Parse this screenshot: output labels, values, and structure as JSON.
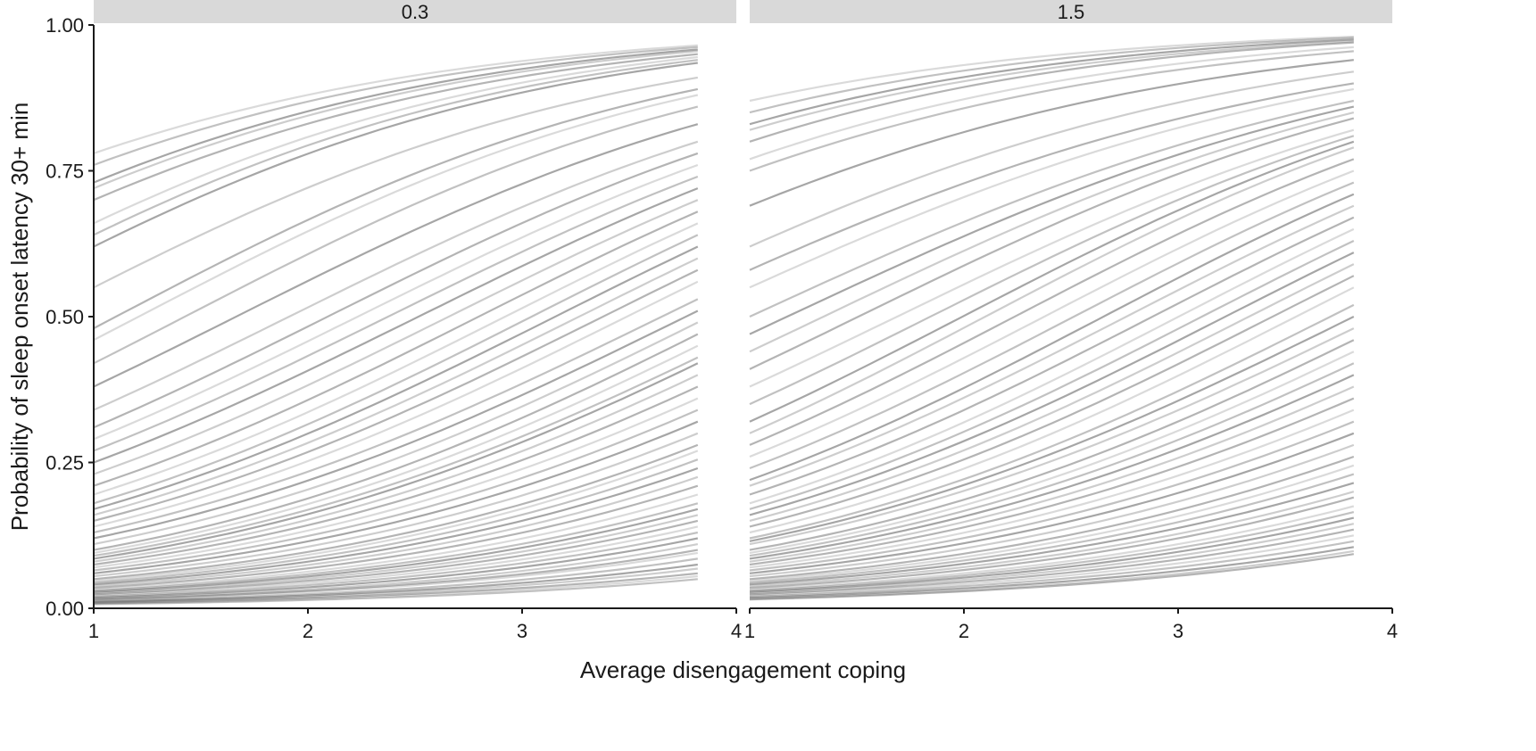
{
  "chart_data": {
    "type": "line",
    "xlabel": "Average disengagement coping",
    "ylabel": "Probability of sleep onset latency 30+ min",
    "xlim": [
      1,
      4
    ],
    "ylim": [
      0,
      1
    ],
    "x_ticks": [
      1,
      2,
      3,
      4
    ],
    "y_ticks": [
      0.0,
      0.25,
      0.5,
      0.75,
      1.0
    ],
    "y_tick_labels": [
      "0.00",
      "0.25",
      "0.50",
      "0.75",
      "1.00"
    ],
    "x_tick_labels": [
      "1",
      "2",
      "3",
      "4"
    ],
    "line_color": "#6b6b6b",
    "strip_color": "#d9d9d9",
    "series_x_range": [
      1,
      3.82
    ],
    "panels": [
      {
        "strip_label": "0.3",
        "series": [
          {
            "start": 0.78,
            "end": 0.965
          },
          {
            "start": 0.76,
            "end": 0.962
          },
          {
            "start": 0.73,
            "end": 0.958
          },
          {
            "start": 0.72,
            "end": 0.955
          },
          {
            "start": 0.7,
            "end": 0.95
          },
          {
            "start": 0.66,
            "end": 0.945
          },
          {
            "start": 0.64,
            "end": 0.94
          },
          {
            "start": 0.62,
            "end": 0.935
          },
          {
            "start": 0.55,
            "end": 0.91
          },
          {
            "start": 0.48,
            "end": 0.89
          },
          {
            "start": 0.46,
            "end": 0.88
          },
          {
            "start": 0.42,
            "end": 0.86
          },
          {
            "start": 0.38,
            "end": 0.83
          },
          {
            "start": 0.34,
            "end": 0.8
          },
          {
            "start": 0.31,
            "end": 0.78
          },
          {
            "start": 0.29,
            "end": 0.76
          },
          {
            "start": 0.27,
            "end": 0.74
          },
          {
            "start": 0.25,
            "end": 0.72
          },
          {
            "start": 0.23,
            "end": 0.7
          },
          {
            "start": 0.21,
            "end": 0.68
          },
          {
            "start": 0.195,
            "end": 0.66
          },
          {
            "start": 0.18,
            "end": 0.64
          },
          {
            "start": 0.17,
            "end": 0.62
          },
          {
            "start": 0.16,
            "end": 0.6
          },
          {
            "start": 0.15,
            "end": 0.58
          },
          {
            "start": 0.14,
            "end": 0.56
          },
          {
            "start": 0.13,
            "end": 0.53
          },
          {
            "start": 0.12,
            "end": 0.51
          },
          {
            "start": 0.11,
            "end": 0.49
          },
          {
            "start": 0.1,
            "end": 0.47
          },
          {
            "start": 0.095,
            "end": 0.45
          },
          {
            "start": 0.09,
            "end": 0.43
          },
          {
            "start": 0.085,
            "end": 0.42
          },
          {
            "start": 0.08,
            "end": 0.4
          },
          {
            "start": 0.075,
            "end": 0.38
          },
          {
            "start": 0.07,
            "end": 0.36
          },
          {
            "start": 0.065,
            "end": 0.34
          },
          {
            "start": 0.06,
            "end": 0.32
          },
          {
            "start": 0.055,
            "end": 0.3
          },
          {
            "start": 0.05,
            "end": 0.28
          },
          {
            "start": 0.047,
            "end": 0.27
          },
          {
            "start": 0.044,
            "end": 0.255
          },
          {
            "start": 0.041,
            "end": 0.24
          },
          {
            "start": 0.038,
            "end": 0.225
          },
          {
            "start": 0.035,
            "end": 0.21
          },
          {
            "start": 0.032,
            "end": 0.195
          },
          {
            "start": 0.03,
            "end": 0.18
          },
          {
            "start": 0.028,
            "end": 0.17
          },
          {
            "start": 0.026,
            "end": 0.16
          },
          {
            "start": 0.024,
            "end": 0.15
          },
          {
            "start": 0.022,
            "end": 0.14
          },
          {
            "start": 0.02,
            "end": 0.13
          },
          {
            "start": 0.018,
            "end": 0.12
          },
          {
            "start": 0.016,
            "end": 0.11
          },
          {
            "start": 0.015,
            "end": 0.1
          },
          {
            "start": 0.014,
            "end": 0.095
          },
          {
            "start": 0.012,
            "end": 0.085
          },
          {
            "start": 0.011,
            "end": 0.075
          },
          {
            "start": 0.01,
            "end": 0.068
          },
          {
            "start": 0.009,
            "end": 0.06
          },
          {
            "start": 0.008,
            "end": 0.055
          },
          {
            "start": 0.007,
            "end": 0.05
          }
        ]
      },
      {
        "strip_label": "1.5",
        "series": [
          {
            "start": 0.87,
            "end": 0.98
          },
          {
            "start": 0.85,
            "end": 0.978
          },
          {
            "start": 0.83,
            "end": 0.975
          },
          {
            "start": 0.82,
            "end": 0.972
          },
          {
            "start": 0.8,
            "end": 0.97
          },
          {
            "start": 0.77,
            "end": 0.962
          },
          {
            "start": 0.75,
            "end": 0.955
          },
          {
            "start": 0.69,
            "end": 0.94
          },
          {
            "start": 0.62,
            "end": 0.92
          },
          {
            "start": 0.58,
            "end": 0.9
          },
          {
            "start": 0.55,
            "end": 0.89
          },
          {
            "start": 0.5,
            "end": 0.87
          },
          {
            "start": 0.47,
            "end": 0.86
          },
          {
            "start": 0.44,
            "end": 0.85
          },
          {
            "start": 0.41,
            "end": 0.84
          },
          {
            "start": 0.38,
            "end": 0.82
          },
          {
            "start": 0.35,
            "end": 0.81
          },
          {
            "start": 0.32,
            "end": 0.8
          },
          {
            "start": 0.3,
            "end": 0.79
          },
          {
            "start": 0.28,
            "end": 0.77
          },
          {
            "start": 0.26,
            "end": 0.75
          },
          {
            "start": 0.24,
            "end": 0.73
          },
          {
            "start": 0.22,
            "end": 0.71
          },
          {
            "start": 0.21,
            "end": 0.69
          },
          {
            "start": 0.195,
            "end": 0.67
          },
          {
            "start": 0.18,
            "end": 0.65
          },
          {
            "start": 0.17,
            "end": 0.63
          },
          {
            "start": 0.16,
            "end": 0.61
          },
          {
            "start": 0.15,
            "end": 0.59
          },
          {
            "start": 0.14,
            "end": 0.57
          },
          {
            "start": 0.13,
            "end": 0.55
          },
          {
            "start": 0.12,
            "end": 0.52
          },
          {
            "start": 0.115,
            "end": 0.5
          },
          {
            "start": 0.11,
            "end": 0.48
          },
          {
            "start": 0.1,
            "end": 0.46
          },
          {
            "start": 0.095,
            "end": 0.44
          },
          {
            "start": 0.09,
            "end": 0.42
          },
          {
            "start": 0.085,
            "end": 0.4
          },
          {
            "start": 0.08,
            "end": 0.38
          },
          {
            "start": 0.075,
            "end": 0.36
          },
          {
            "start": 0.07,
            "end": 0.34
          },
          {
            "start": 0.065,
            "end": 0.32
          },
          {
            "start": 0.06,
            "end": 0.3
          },
          {
            "start": 0.055,
            "end": 0.28
          },
          {
            "start": 0.05,
            "end": 0.26
          },
          {
            "start": 0.047,
            "end": 0.245
          },
          {
            "start": 0.044,
            "end": 0.23
          },
          {
            "start": 0.041,
            "end": 0.215
          },
          {
            "start": 0.038,
            "end": 0.2
          },
          {
            "start": 0.035,
            "end": 0.19
          },
          {
            "start": 0.032,
            "end": 0.175
          },
          {
            "start": 0.03,
            "end": 0.165
          },
          {
            "start": 0.028,
            "end": 0.155
          },
          {
            "start": 0.026,
            "end": 0.145
          },
          {
            "start": 0.024,
            "end": 0.135
          },
          {
            "start": 0.022,
            "end": 0.125
          },
          {
            "start": 0.02,
            "end": 0.115
          },
          {
            "start": 0.018,
            "end": 0.105
          },
          {
            "start": 0.016,
            "end": 0.098
          },
          {
            "start": 0.015,
            "end": 0.093
          }
        ]
      }
    ]
  }
}
